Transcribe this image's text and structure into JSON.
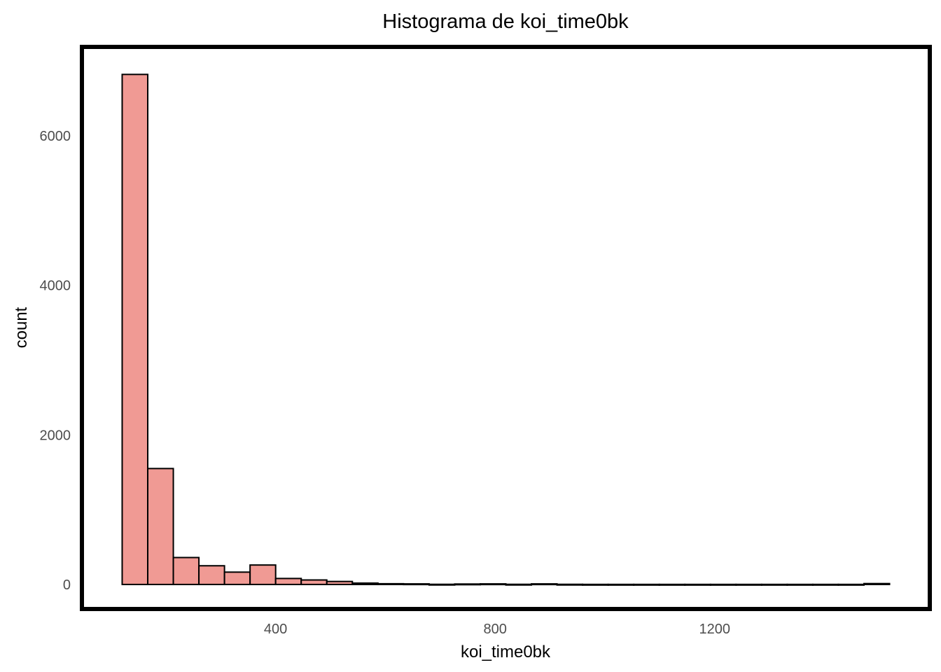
{
  "chart_data": {
    "type": "bar",
    "title": "Histograma de koi_time0bk",
    "xlabel": "koi_time0bk",
    "ylabel": "count",
    "bin_width": 46.6,
    "bins": [
      {
        "x0": 120.5,
        "x1": 167.1,
        "count": 6820
      },
      {
        "x0": 167.1,
        "x1": 213.7,
        "count": 1550
      },
      {
        "x0": 213.7,
        "x1": 260.3,
        "count": 360
      },
      {
        "x0": 260.3,
        "x1": 306.9,
        "count": 250
      },
      {
        "x0": 306.9,
        "x1": 353.5,
        "count": 165
      },
      {
        "x0": 353.5,
        "x1": 400.1,
        "count": 260
      },
      {
        "x0": 400.1,
        "x1": 446.7,
        "count": 80
      },
      {
        "x0": 446.7,
        "x1": 493.3,
        "count": 60
      },
      {
        "x0": 493.3,
        "x1": 539.9,
        "count": 40
      },
      {
        "x0": 539.9,
        "x1": 586.5,
        "count": 18
      },
      {
        "x0": 586.5,
        "x1": 633.1,
        "count": 10
      },
      {
        "x0": 633.1,
        "x1": 679.7,
        "count": 8
      },
      {
        "x0": 679.7,
        "x1": 726.3,
        "count": 2
      },
      {
        "x0": 726.3,
        "x1": 772.9,
        "count": 6
      },
      {
        "x0": 772.9,
        "x1": 819.5,
        "count": 8
      },
      {
        "x0": 819.5,
        "x1": 866.1,
        "count": 2
      },
      {
        "x0": 866.1,
        "x1": 912.7,
        "count": 8
      },
      {
        "x0": 912.7,
        "x1": 959.3,
        "count": 2
      },
      {
        "x0": 959.3,
        "x1": 1005.9,
        "count": 1
      },
      {
        "x0": 1005.9,
        "x1": 1052.5,
        "count": 1
      },
      {
        "x0": 1052.5,
        "x1": 1099.1,
        "count": 1
      },
      {
        "x0": 1099.1,
        "x1": 1145.7,
        "count": 1
      },
      {
        "x0": 1145.7,
        "x1": 1192.3,
        "count": 1
      },
      {
        "x0": 1192.3,
        "x1": 1238.9,
        "count": 1
      },
      {
        "x0": 1238.9,
        "x1": 1285.5,
        "count": 1
      },
      {
        "x0": 1285.5,
        "x1": 1332.1,
        "count": 1
      },
      {
        "x0": 1332.1,
        "x1": 1378.7,
        "count": 1
      },
      {
        "x0": 1378.7,
        "x1": 1425.3,
        "count": 1
      },
      {
        "x0": 1425.3,
        "x1": 1471.9,
        "count": 1
      },
      {
        "x0": 1471.9,
        "x1": 1518.5,
        "count": 12
      }
    ],
    "xlim": [
      51,
      1588
    ],
    "ylim": [
      -300,
      7160
    ],
    "xticks": [
      400,
      800,
      1200
    ],
    "xtick_labels": [
      "400",
      "800",
      "1200"
    ],
    "yticks": [
      0,
      2000,
      4000,
      6000
    ],
    "ytick_labels": [
      "0",
      "2000",
      "4000",
      "6000"
    ],
    "grid": false,
    "bar_fill": "#f09a94",
    "bar_stroke": "#000000",
    "panel_border": "#000000"
  }
}
